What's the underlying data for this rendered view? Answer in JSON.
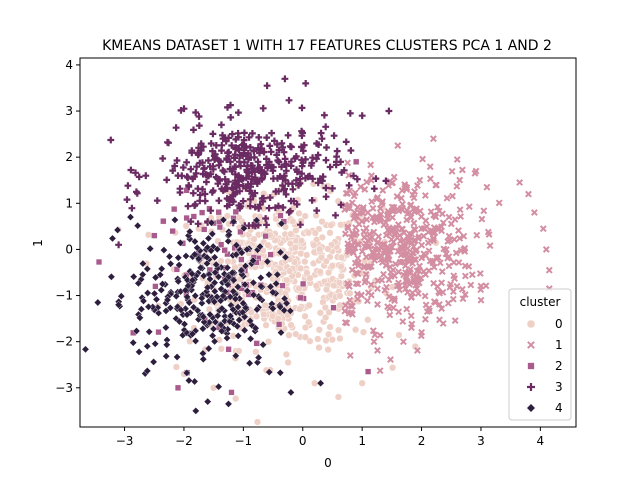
{
  "chart_data": {
    "type": "scatter",
    "title": "KMEANS DATASET 1 WITH 17 FEATURES CLUSTERS PCA 1 AND 2",
    "xlabel": "0",
    "ylabel": "1",
    "xlim": [
      -3.75,
      4.6
    ],
    "ylim": [
      -3.85,
      4.15
    ],
    "xticks": [
      -3,
      -2,
      -1,
      0,
      1,
      2,
      3,
      4
    ],
    "yticks": [
      -3,
      -2,
      -1,
      0,
      1,
      2,
      3,
      4
    ],
    "grid": false,
    "legend": {
      "title": "cluster",
      "placement": "lower-right"
    },
    "series": [
      {
        "name": "0",
        "marker": "circle",
        "color": "#efd0c6",
        "region": {
          "cx": -0.3,
          "cy": -0.5,
          "rx": 1.3,
          "ry": 1.3
        },
        "approx_count": 550,
        "points": [
          [
            -2.0,
            -2.7
          ],
          [
            0.6,
            -3.2
          ],
          [
            1.0,
            -2.9
          ],
          [
            -1.5,
            -3.0
          ],
          [
            0.2,
            -2.9
          ],
          [
            -0.3,
            1.5
          ]
        ]
      },
      {
        "name": "1",
        "marker": "x",
        "color": "#d38ea2",
        "region": {
          "cx": 1.6,
          "cy": 0.0,
          "rx": 1.05,
          "ry": 1.35
        },
        "approx_count": 480,
        "points": [
          [
            3.65,
            1.45
          ],
          [
            3.8,
            1.2
          ],
          [
            3.9,
            0.8
          ],
          [
            4.05,
            0.45
          ],
          [
            4.1,
            0.0
          ],
          [
            4.15,
            -0.45
          ],
          [
            4.15,
            -0.85
          ],
          [
            3.1,
            1.35
          ],
          [
            2.9,
            1.65
          ],
          [
            2.6,
            1.95
          ],
          [
            2.2,
            2.4
          ],
          [
            1.6,
            2.25
          ],
          [
            3.0,
            -1.1
          ],
          [
            2.0,
            -1.8
          ],
          [
            1.2,
            -2.0
          ],
          [
            0.8,
            -2.3
          ]
        ]
      },
      {
        "name": "2",
        "marker": "square",
        "color": "#a85b8c",
        "region": {
          "cx": -1.1,
          "cy": -0.4,
          "rx": 1.0,
          "ry": 1.3
        },
        "approx_count": 70,
        "points": [
          [
            -2.1,
            -3.0
          ],
          [
            -1.2,
            -3.1
          ],
          [
            1.1,
            -2.65
          ],
          [
            0.9,
            1.9
          ],
          [
            -2.5,
            0.3
          ]
        ]
      },
      {
        "name": "3",
        "marker": "plus",
        "color": "#6a2b62",
        "region": {
          "cx": -0.9,
          "cy": 1.7,
          "rx": 1.25,
          "ry": 0.85
        },
        "approx_count": 380,
        "points": [
          [
            -0.3,
            3.7
          ],
          [
            0.05,
            3.6
          ],
          [
            -0.6,
            3.55
          ],
          [
            -2.0,
            3.05
          ],
          [
            1.0,
            2.9
          ],
          [
            0.8,
            2.95
          ],
          [
            1.45,
            3.0
          ],
          [
            -2.1,
            1.6
          ],
          [
            -2.8,
            1.25
          ],
          [
            -3.1,
            0.1
          ]
        ]
      },
      {
        "name": "4",
        "marker": "diamond",
        "color": "#2d1e3e",
        "region": {
          "cx": -1.6,
          "cy": -1.0,
          "rx": 1.0,
          "ry": 1.25
        },
        "approx_count": 320,
        "points": [
          [
            -3.45,
            -1.15
          ],
          [
            -1.8,
            -3.5
          ],
          [
            -1.6,
            -3.3
          ],
          [
            -3.1,
            -1.2
          ],
          [
            -2.9,
            0.7
          ],
          [
            -0.2,
            -3.1
          ],
          [
            0.3,
            -2.9
          ],
          [
            -1.25,
            -3.35
          ]
        ]
      }
    ]
  }
}
